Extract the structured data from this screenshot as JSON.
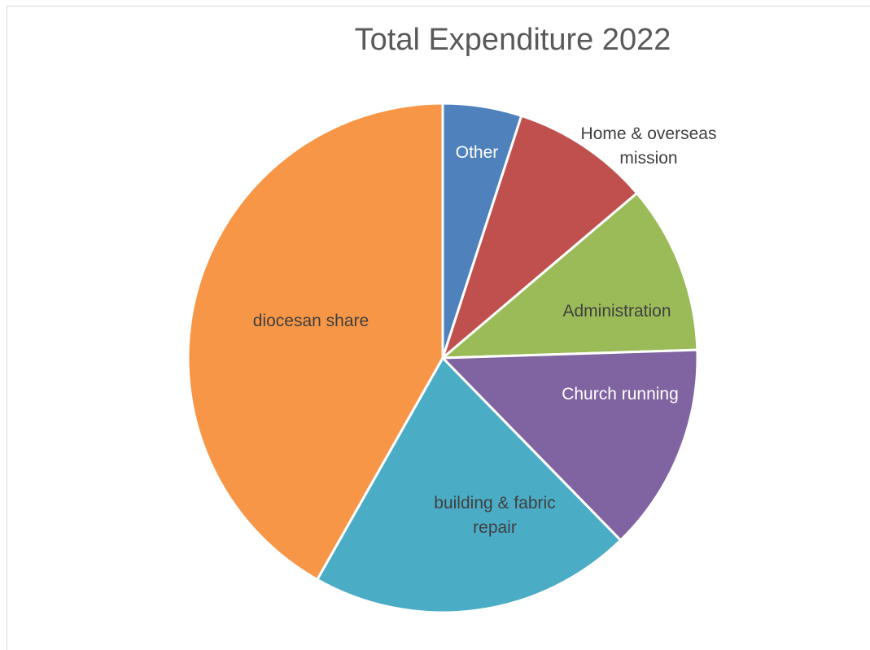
{
  "chart_data": {
    "type": "pie",
    "title": "Total Expenditure 2022",
    "start_angle_deg": 0,
    "direction": "clockwise",
    "legend": "none",
    "slices": [
      {
        "label": "Other",
        "value": 5.0,
        "color": "#4f81bd",
        "label_color": "#ffffff",
        "label_lines": [
          "Other"
        ]
      },
      {
        "label": "Home & overseas mission",
        "value": 8.8,
        "color": "#c0504d",
        "label_color": "#404040",
        "label_lines": [
          "Home & overseas",
          "mission"
        ]
      },
      {
        "label": "Administration",
        "value": 10.7,
        "color": "#9bbb59",
        "label_color": "#404040",
        "label_lines": [
          "Administration"
        ]
      },
      {
        "label": "Church running",
        "value": 13.2,
        "color": "#8064a2",
        "label_color": "#ffffff",
        "label_lines": [
          "Church running"
        ]
      },
      {
        "label": "building & fabric repair",
        "value": 20.5,
        "color": "#4bacc6",
        "label_color": "#404040",
        "label_lines": [
          "building & fabric",
          "repair"
        ]
      },
      {
        "label": "diocesan share",
        "value": 41.8,
        "color": "#f79646",
        "label_color": "#404040",
        "label_lines": [
          "diocesan share"
        ]
      }
    ]
  }
}
